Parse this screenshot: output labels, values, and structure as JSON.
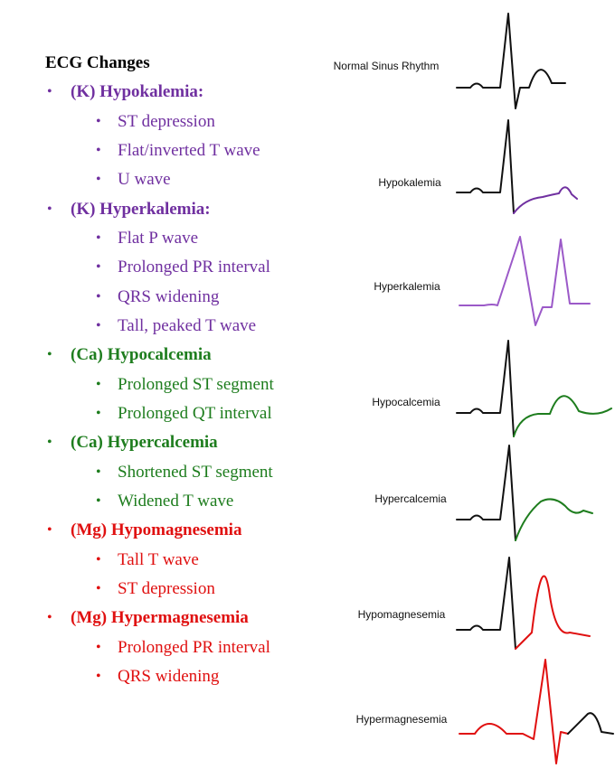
{
  "title": "ECG Changes",
  "sections": [
    {
      "heading": "(K) Hypokalemia:",
      "items": [
        "ST depression",
        "Flat/inverted T wave",
        "U wave"
      ]
    },
    {
      "heading": "(K) Hyperkalemia:",
      "items": [
        "Flat P wave",
        "Prolonged PR interval",
        "QRS widening",
        "Tall, peaked T wave"
      ]
    },
    {
      "heading": "(Ca) Hypocalcemia",
      "items": [
        "Prolonged ST segment",
        "Prolonged QT interval"
      ]
    },
    {
      "heading": "(Ca) Hypercalcemia",
      "items": [
        "Shortened ST segment",
        "Widened T wave"
      ]
    },
    {
      "heading": "(Mg) Hypomagnesemia",
      "items": [
        "Tall T wave",
        "ST depression"
      ]
    },
    {
      "heading": "(Mg) Hypermagnesemia",
      "items": [
        "Prolonged PR interval",
        "QRS widening"
      ]
    }
  ],
  "traces": [
    "Normal Sinus Rhythm",
    "Hypokalemia",
    "Hyperkalemia",
    "Hypocalcemia",
    "Hypercalcemia",
    "Hypomagnesemia",
    "Hypermagnesemia"
  ]
}
